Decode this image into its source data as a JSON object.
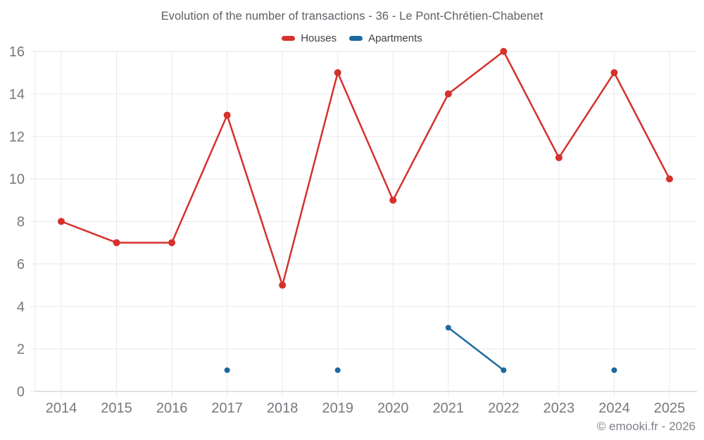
{
  "chart_data": {
    "type": "line",
    "title": "Evolution of the number of transactions - 36 - Le Pont-Chrétien-Chabenet",
    "categories": [
      "2014",
      "2015",
      "2016",
      "2017",
      "2018",
      "2019",
      "2020",
      "2021",
      "2022",
      "2023",
      "2024",
      "2025"
    ],
    "series": [
      {
        "name": "Houses",
        "color": "#d5312d",
        "values": [
          8,
          7,
          7,
          13,
          5,
          15,
          9,
          14,
          16,
          11,
          15,
          10
        ]
      },
      {
        "name": "Apartments",
        "color": "#1b69a1",
        "values": [
          null,
          null,
          null,
          1,
          null,
          1,
          null,
          3,
          1,
          null,
          1,
          null
        ]
      }
    ],
    "ylim": [
      0,
      16
    ],
    "yticks": [
      0,
      2,
      4,
      6,
      8,
      10,
      12,
      14,
      16
    ],
    "grid": true,
    "legend_position": "top",
    "axis_text_color": "#75797e"
  },
  "footer": {
    "copyright": "© emooki.fr - 2026"
  }
}
